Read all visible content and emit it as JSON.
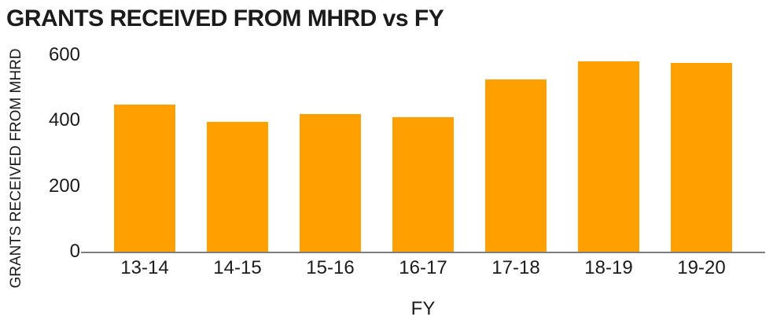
{
  "chart_data": {
    "type": "bar",
    "title": "GRANTS RECEIVED FROM MHRD vs FY",
    "xlabel": "FY",
    "ylabel": "GRANTS RECEIVED FROM MHRD",
    "categories": [
      "13-14",
      "14-15",
      "15-16",
      "16-17",
      "17-18",
      "18-19",
      "19-20"
    ],
    "values": [
      450,
      395,
      420,
      410,
      525,
      580,
      575
    ],
    "yticks": [
      0,
      200,
      400,
      600
    ],
    "ylim": [
      0,
      600
    ],
    "grid": false,
    "legend": "none",
    "colors": {
      "bar": "#FFA000",
      "axis_line": "#7F7F7F",
      "text": "#1B1B1B",
      "background": "#FFFFFF"
    }
  }
}
